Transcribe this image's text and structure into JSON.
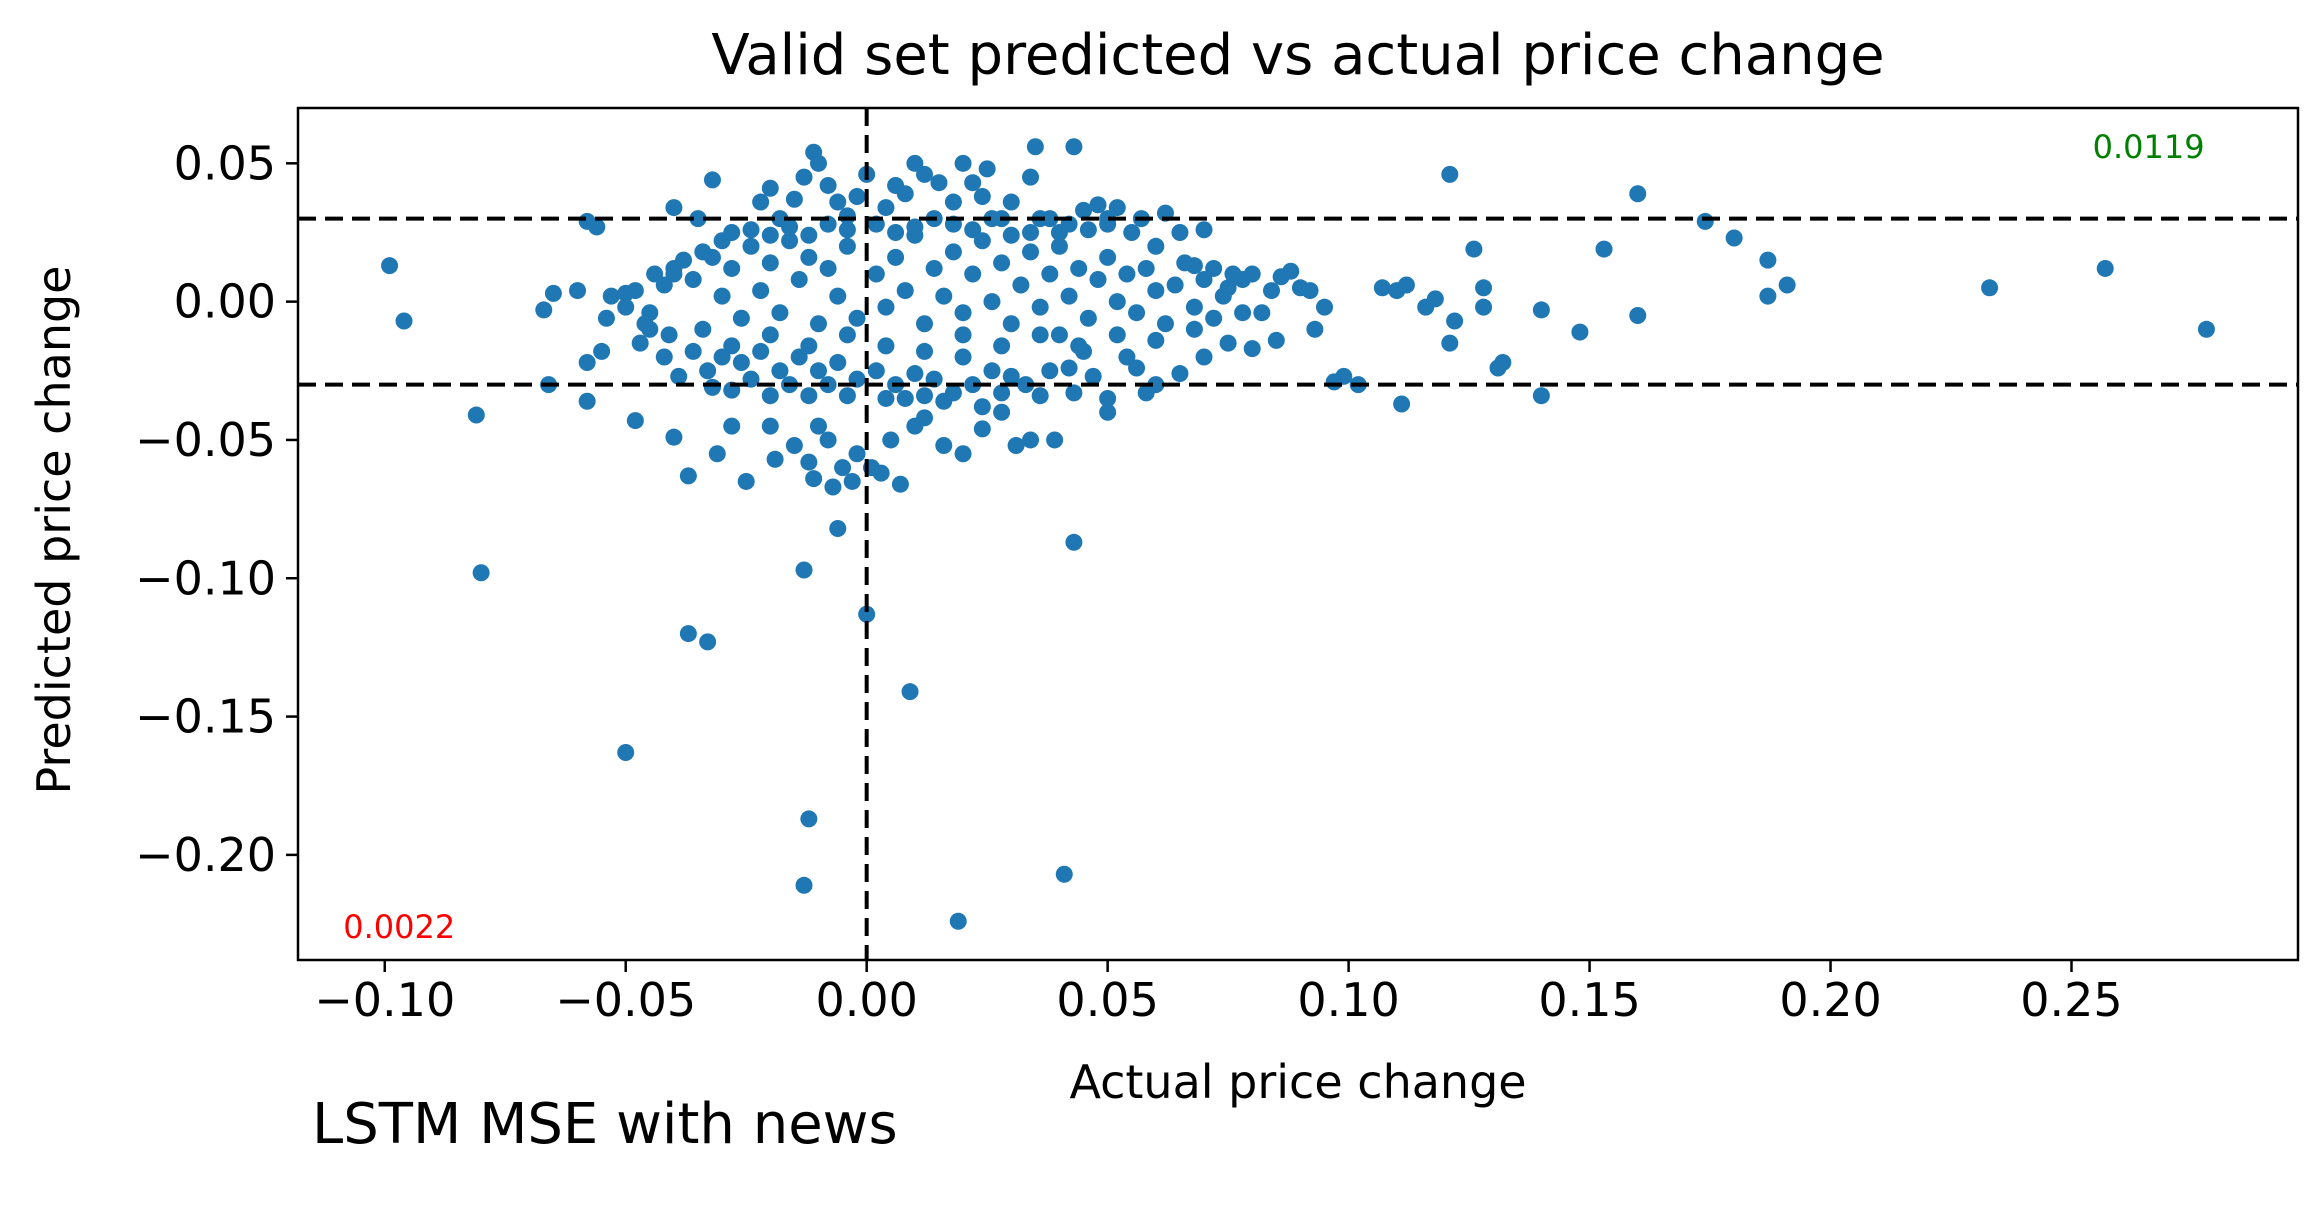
{
  "caption": "LSTM MSE with news",
  "colors": {
    "points": "#1f77b4",
    "refline": "#000000",
    "annotation_top": "#008000",
    "annotation_bottom": "#ff0000"
  },
  "chart_data": {
    "type": "scatter",
    "title": "Valid set predicted vs actual price change",
    "xlabel": "Actual price change",
    "ylabel": "Predicted price change",
    "xlim": [
      -0.118,
      0.297
    ],
    "ylim": [
      -0.238,
      0.07
    ],
    "xticks": [
      -0.1,
      -0.05,
      0.0,
      0.05,
      0.1,
      0.15,
      0.2,
      0.25
    ],
    "xtick_labels": [
      "−0.10",
      "−0.05",
      "0.00",
      "0.05",
      "0.10",
      "0.15",
      "0.20",
      "0.25"
    ],
    "yticks": [
      0.05,
      0.0,
      -0.05,
      -0.1,
      -0.15,
      -0.2
    ],
    "ytick_labels": [
      "0.05",
      "0.00",
      "−0.05",
      "−0.10",
      "−0.15",
      "−0.20"
    ],
    "grid": false,
    "reference_lines": {
      "horizontal": [
        0.03,
        -0.03
      ],
      "vertical": [
        0.0
      ],
      "style": "dashed"
    },
    "annotations": [
      {
        "text": "0.0119",
        "x": 0.266,
        "y": 0.052,
        "color": "#008000"
      },
      {
        "text": "0.0022",
        "x": -0.097,
        "y": -0.23,
        "color": "#ff0000"
      }
    ],
    "cluster_note": "dense cloud of several hundred points roughly x in [-0.06, 0.09], y in [-0.06, 0.05]; individually resolved points listed below",
    "points": [
      [
        -0.099,
        0.013
      ],
      [
        -0.096,
        -0.007
      ],
      [
        -0.081,
        -0.041
      ],
      [
        -0.08,
        -0.098
      ],
      [
        -0.067,
        -0.003
      ],
      [
        -0.065,
        0.003
      ],
      [
        -0.06,
        0.004
      ],
      [
        -0.058,
        -0.022
      ],
      [
        -0.058,
        0.029
      ],
      [
        -0.056,
        0.027
      ],
      [
        -0.055,
        -0.018
      ],
      [
        -0.053,
        0.002
      ],
      [
        -0.05,
        -0.002
      ],
      [
        -0.048,
        0.004
      ],
      [
        -0.045,
        -0.004
      ],
      [
        -0.042,
        0.006
      ],
      [
        -0.041,
        -0.012
      ],
      [
        -0.04,
        0.01
      ],
      [
        -0.058,
        -0.036
      ],
      [
        -0.066,
        -0.03
      ],
      [
        -0.048,
        -0.043
      ],
      [
        -0.04,
        -0.049
      ],
      [
        -0.037,
        -0.063
      ],
      [
        -0.032,
        -0.031
      ],
      [
        -0.031,
        -0.055
      ],
      [
        -0.028,
        -0.045
      ],
      [
        -0.025,
        -0.065
      ],
      [
        -0.02,
        -0.045
      ],
      [
        -0.019,
        -0.057
      ],
      [
        -0.015,
        -0.052
      ],
      [
        -0.012,
        -0.058
      ],
      [
        -0.011,
        -0.064
      ],
      [
        -0.01,
        -0.045
      ],
      [
        -0.008,
        -0.05
      ],
      [
        -0.007,
        -0.067
      ],
      [
        -0.006,
        -0.082
      ],
      [
        -0.005,
        -0.06
      ],
      [
        -0.003,
        -0.065
      ],
      [
        -0.002,
        -0.055
      ],
      [
        0.001,
        -0.06
      ],
      [
        0.003,
        -0.062
      ],
      [
        0.005,
        -0.05
      ],
      [
        0.007,
        -0.066
      ],
      [
        0.01,
        -0.045
      ],
      [
        0.012,
        -0.042
      ],
      [
        0.016,
        -0.052
      ],
      [
        0.02,
        -0.055
      ],
      [
        0.024,
        -0.046
      ],
      [
        0.028,
        -0.04
      ],
      [
        0.031,
        -0.052
      ],
      [
        0.034,
        -0.05
      ],
      [
        0.039,
        -0.05
      ],
      [
        0.043,
        -0.033
      ],
      [
        0.05,
        -0.04
      ],
      [
        -0.013,
        -0.097
      ],
      [
        -0.037,
        -0.12
      ],
      [
        -0.033,
        -0.123
      ],
      [
        0.0,
        -0.113
      ],
      [
        0.043,
        -0.087
      ],
      [
        0.009,
        -0.141
      ],
      [
        -0.05,
        -0.163
      ],
      [
        -0.012,
        -0.187
      ],
      [
        -0.013,
        -0.211
      ],
      [
        0.041,
        -0.207
      ],
      [
        0.019,
        -0.224
      ],
      [
        -0.04,
        0.034
      ],
      [
        -0.035,
        0.03
      ],
      [
        -0.032,
        0.044
      ],
      [
        -0.028,
        0.025
      ],
      [
        -0.022,
        0.036
      ],
      [
        -0.02,
        0.041
      ],
      [
        -0.018,
        0.03
      ],
      [
        -0.015,
        0.037
      ],
      [
        -0.013,
        0.045
      ],
      [
        -0.011,
        0.054
      ],
      [
        -0.01,
        0.05
      ],
      [
        -0.008,
        0.042
      ],
      [
        -0.006,
        0.036
      ],
      [
        -0.004,
        0.031
      ],
      [
        -0.002,
        0.038
      ],
      [
        0.0,
        0.046
      ],
      [
        0.004,
        0.034
      ],
      [
        0.006,
        0.042
      ],
      [
        0.008,
        0.039
      ],
      [
        0.01,
        0.05
      ],
      [
        0.012,
        0.046
      ],
      [
        0.015,
        0.043
      ],
      [
        0.018,
        0.036
      ],
      [
        0.02,
        0.05
      ],
      [
        0.022,
        0.043
      ],
      [
        0.024,
        0.038
      ],
      [
        0.025,
        0.048
      ],
      [
        0.028,
        0.03
      ],
      [
        0.03,
        0.036
      ],
      [
        0.034,
        0.045
      ],
      [
        0.035,
        0.056
      ],
      [
        0.036,
        0.03
      ],
      [
        0.04,
        0.025
      ],
      [
        0.043,
        0.056
      ],
      [
        0.045,
        0.033
      ],
      [
        0.048,
        0.035
      ],
      [
        0.05,
        0.028
      ],
      [
        0.052,
        0.034
      ],
      [
        0.055,
        0.025
      ],
      [
        0.057,
        0.03
      ],
      [
        0.06,
        0.02
      ],
      [
        0.062,
        0.032
      ],
      [
        0.065,
        0.025
      ],
      [
        0.068,
        0.013
      ],
      [
        0.07,
        0.026
      ],
      [
        0.072,
        0.012
      ],
      [
        0.075,
        0.005
      ],
      [
        0.078,
        0.008
      ],
      [
        0.08,
        0.01
      ],
      [
        0.082,
        -0.004
      ],
      [
        0.084,
        0.004
      ],
      [
        0.086,
        0.009
      ],
      [
        0.088,
        0.011
      ],
      [
        0.09,
        0.005
      ],
      [
        0.092,
        0.004
      ],
      [
        0.093,
        -0.01
      ],
      [
        0.095,
        -0.002
      ],
      [
        0.085,
        -0.014
      ],
      [
        0.08,
        -0.017
      ],
      [
        0.075,
        -0.015
      ],
      [
        0.07,
        -0.02
      ],
      [
        0.068,
        -0.01
      ],
      [
        0.065,
        -0.026
      ],
      [
        0.06,
        -0.03
      ],
      [
        0.058,
        -0.033
      ],
      [
        0.056,
        -0.024
      ],
      [
        0.054,
        -0.02
      ],
      [
        0.05,
        -0.035
      ],
      [
        0.047,
        -0.027
      ],
      [
        0.045,
        -0.018
      ],
      [
        0.042,
        -0.024
      ],
      [
        0.04,
        -0.012
      ],
      [
        0.038,
        -0.025
      ],
      [
        0.036,
        -0.034
      ],
      [
        0.033,
        -0.03
      ],
      [
        0.03,
        -0.027
      ],
      [
        0.028,
        -0.033
      ],
      [
        0.026,
        -0.025
      ],
      [
        0.024,
        -0.038
      ],
      [
        0.022,
        -0.03
      ],
      [
        0.02,
        -0.02
      ],
      [
        0.018,
        -0.033
      ],
      [
        0.016,
        -0.036
      ],
      [
        0.014,
        -0.028
      ],
      [
        0.012,
        -0.034
      ],
      [
        0.01,
        -0.026
      ],
      [
        0.008,
        -0.035
      ],
      [
        0.006,
        -0.03
      ],
      [
        0.004,
        -0.035
      ],
      [
        0.002,
        -0.025
      ],
      [
        -0.002,
        -0.028
      ],
      [
        -0.004,
        -0.034
      ],
      [
        -0.006,
        -0.022
      ],
      [
        -0.008,
        -0.03
      ],
      [
        -0.01,
        -0.025
      ],
      [
        -0.012,
        -0.034
      ],
      [
        -0.014,
        -0.02
      ],
      [
        -0.016,
        -0.03
      ],
      [
        -0.018,
        -0.025
      ],
      [
        -0.02,
        -0.034
      ],
      [
        -0.022,
        -0.018
      ],
      [
        -0.024,
        -0.028
      ],
      [
        -0.026,
        -0.022
      ],
      [
        -0.028,
        -0.032
      ],
      [
        -0.03,
        -0.02
      ],
      [
        -0.033,
        -0.025
      ],
      [
        -0.036,
        -0.018
      ],
      [
        -0.039,
        -0.027
      ],
      [
        -0.042,
        -0.02
      ],
      [
        -0.045,
        -0.01
      ],
      [
        -0.047,
        -0.015
      ],
      [
        0.107,
        0.005
      ],
      [
        0.11,
        0.004
      ],
      [
        0.112,
        0.006
      ],
      [
        0.116,
        -0.002
      ],
      [
        0.118,
        0.001
      ],
      [
        0.121,
        -0.015
      ],
      [
        0.122,
        -0.007
      ],
      [
        0.126,
        0.019
      ],
      [
        0.128,
        0.005
      ],
      [
        0.128,
        -0.002
      ],
      [
        0.131,
        -0.024
      ],
      [
        0.132,
        -0.022
      ],
      [
        0.14,
        -0.003
      ],
      [
        0.14,
        -0.034
      ],
      [
        0.148,
        -0.011
      ],
      [
        0.153,
        0.019
      ],
      [
        0.16,
        -0.005
      ],
      [
        0.16,
        0.039
      ],
      [
        0.174,
        0.029
      ],
      [
        0.18,
        0.023
      ],
      [
        0.187,
        0.015
      ],
      [
        0.187,
        0.002
      ],
      [
        0.191,
        0.006
      ],
      [
        0.121,
        0.046
      ],
      [
        0.102,
        -0.03
      ],
      [
        0.111,
        -0.037
      ],
      [
        0.099,
        -0.027
      ],
      [
        0.097,
        -0.029
      ],
      [
        0.233,
        0.005
      ],
      [
        0.257,
        0.012
      ],
      [
        0.278,
        -0.01
      ],
      [
        -0.04,
        0.012
      ],
      [
        -0.036,
        0.008
      ],
      [
        -0.032,
        0.016
      ],
      [
        -0.03,
        0.002
      ],
      [
        -0.028,
        0.012
      ],
      [
        -0.026,
        -0.006
      ],
      [
        -0.024,
        0.02
      ],
      [
        -0.022,
        0.004
      ],
      [
        -0.02,
        0.014
      ],
      [
        -0.018,
        -0.004
      ],
      [
        -0.016,
        0.022
      ],
      [
        -0.014,
        0.008
      ],
      [
        -0.012,
        0.016
      ],
      [
        -0.01,
        -0.008
      ],
      [
        -0.008,
        0.012
      ],
      [
        -0.006,
        0.002
      ],
      [
        -0.004,
        0.02
      ],
      [
        -0.002,
        -0.006
      ],
      [
        0.002,
        0.01
      ],
      [
        0.004,
        -0.002
      ],
      [
        0.006,
        0.016
      ],
      [
        0.008,
        0.004
      ],
      [
        0.01,
        0.024
      ],
      [
        0.012,
        -0.008
      ],
      [
        0.014,
        0.012
      ],
      [
        0.016,
        0.002
      ],
      [
        0.018,
        0.018
      ],
      [
        0.02,
        -0.004
      ],
      [
        0.022,
        0.01
      ],
      [
        0.024,
        0.022
      ],
      [
        0.026,
        0.0
      ],
      [
        0.028,
        0.014
      ],
      [
        0.03,
        -0.008
      ],
      [
        0.032,
        0.006
      ],
      [
        0.034,
        0.018
      ],
      [
        0.036,
        -0.002
      ],
      [
        0.038,
        0.01
      ],
      [
        0.04,
        0.02
      ],
      [
        0.042,
        0.002
      ],
      [
        0.044,
        0.012
      ],
      [
        0.046,
        -0.006
      ],
      [
        0.048,
        0.008
      ],
      [
        0.05,
        0.016
      ],
      [
        0.052,
        0.0
      ],
      [
        0.054,
        0.01
      ],
      [
        0.056,
        -0.004
      ],
      [
        0.058,
        0.012
      ],
      [
        0.06,
        0.004
      ],
      [
        0.062,
        -0.008
      ],
      [
        0.064,
        0.006
      ],
      [
        0.066,
        0.014
      ],
      [
        0.068,
        -0.002
      ],
      [
        0.07,
        0.008
      ],
      [
        0.072,
        -0.006
      ],
      [
        0.074,
        0.002
      ],
      [
        0.076,
        0.01
      ],
      [
        0.078,
        -0.004
      ],
      [
        0.05,
        0.03
      ],
      [
        0.046,
        0.026
      ],
      [
        0.042,
        0.028
      ],
      [
        0.038,
        0.03
      ],
      [
        0.034,
        0.025
      ],
      [
        0.03,
        0.024
      ],
      [
        0.026,
        0.03
      ],
      [
        0.022,
        0.026
      ],
      [
        0.018,
        0.028
      ],
      [
        0.014,
        0.03
      ],
      [
        0.01,
        0.027
      ],
      [
        0.006,
        0.025
      ],
      [
        0.002,
        0.028
      ],
      [
        -0.004,
        0.026
      ],
      [
        -0.008,
        0.028
      ],
      [
        -0.012,
        0.024
      ],
      [
        -0.016,
        0.027
      ],
      [
        -0.02,
        0.024
      ],
      [
        -0.024,
        0.026
      ],
      [
        -0.03,
        0.022
      ],
      [
        -0.034,
        0.018
      ],
      [
        -0.038,
        0.015
      ],
      [
        -0.044,
        0.01
      ],
      [
        -0.05,
        0.003
      ],
      [
        -0.054,
        -0.006
      ],
      [
        -0.046,
        -0.008
      ],
      [
        -0.034,
        -0.01
      ],
      [
        -0.028,
        -0.016
      ],
      [
        -0.02,
        -0.012
      ],
      [
        -0.012,
        -0.016
      ],
      [
        -0.004,
        -0.012
      ],
      [
        0.004,
        -0.016
      ],
      [
        0.012,
        -0.018
      ],
      [
        0.02,
        -0.012
      ],
      [
        0.028,
        -0.016
      ],
      [
        0.036,
        -0.012
      ],
      [
        0.044,
        -0.016
      ],
      [
        0.052,
        -0.012
      ],
      [
        0.06,
        -0.014
      ]
    ]
  }
}
